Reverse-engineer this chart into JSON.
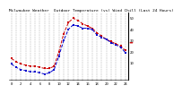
{
  "title": "Milwaukee Weather  Outdoor Temperature (vs) Wind Chill (Last 24 Hours)",
  "temp_color": "#cc0000",
  "windchill_color": "#0000cc",
  "background_color": "#ffffff",
  "grid_color": "#888888",
  "temp_values": [
    14,
    11,
    9,
    8,
    7,
    7,
    6,
    5,
    5,
    7,
    20,
    36,
    46,
    50,
    48,
    45,
    43,
    41,
    37,
    34,
    31,
    29,
    27,
    25,
    21
  ],
  "windchill_values": [
    9,
    6,
    4,
    3,
    2,
    2,
    1,
    0,
    1,
    4,
    16,
    30,
    40,
    44,
    43,
    41,
    41,
    40,
    35,
    33,
    31,
    28,
    26,
    24,
    19
  ],
  "ylim": [
    -5,
    55
  ],
  "ytick_values": [
    10,
    20,
    30,
    40,
    50
  ],
  "n_points": 25,
  "title_fontsize": 3.2,
  "tick_fontsize": 2.8,
  "linewidth": 0.7,
  "markersize": 1.8,
  "grid_linewidth": 0.35
}
